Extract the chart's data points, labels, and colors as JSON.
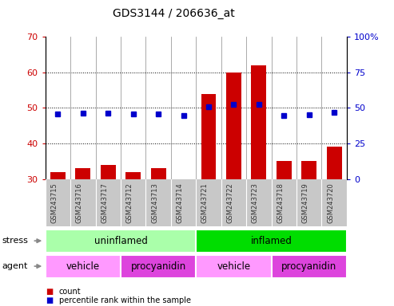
{
  "title": "GDS3144 / 206636_at",
  "samples": [
    "GSM243715",
    "GSM243716",
    "GSM243717",
    "GSM243712",
    "GSM243713",
    "GSM243714",
    "GSM243721",
    "GSM243722",
    "GSM243723",
    "GSM243718",
    "GSM243719",
    "GSM243720"
  ],
  "counts": [
    32,
    33,
    34,
    32,
    33,
    30,
    54,
    60,
    62,
    35,
    35,
    39
  ],
  "percentiles": [
    46,
    46.5,
    46.5,
    45.5,
    46,
    44.5,
    51,
    52.5,
    52.5,
    44.5,
    45,
    47
  ],
  "ylim_left": [
    30,
    70
  ],
  "ylim_right": [
    0,
    100
  ],
  "yticks_left": [
    30,
    40,
    50,
    60,
    70
  ],
  "yticks_right": [
    0,
    25,
    50,
    75,
    100
  ],
  "bar_color": "#cc0000",
  "dot_color": "#0000cc",
  "stress_groups": [
    {
      "label": "uninflamed",
      "start": 0,
      "end": 6,
      "color": "#aaffaa"
    },
    {
      "label": "inflamed",
      "start": 6,
      "end": 12,
      "color": "#00dd00"
    }
  ],
  "agent_groups": [
    {
      "label": "vehicle",
      "start": 0,
      "end": 3,
      "color": "#ff99ff"
    },
    {
      "label": "procyanidin",
      "start": 3,
      "end": 6,
      "color": "#dd44dd"
    },
    {
      "label": "vehicle",
      "start": 6,
      "end": 9,
      "color": "#ff99ff"
    },
    {
      "label": "procyanidin",
      "start": 9,
      "end": 12,
      "color": "#dd44dd"
    }
  ],
  "legend_count_label": "count",
  "legend_pct_label": "percentile rank within the sample",
  "legend_count_color": "#cc0000",
  "legend_pct_color": "#0000cc",
  "stress_label": "stress",
  "agent_label": "agent",
  "label_bg_color": "#c8c8c8",
  "label_border_color": "#888888"
}
